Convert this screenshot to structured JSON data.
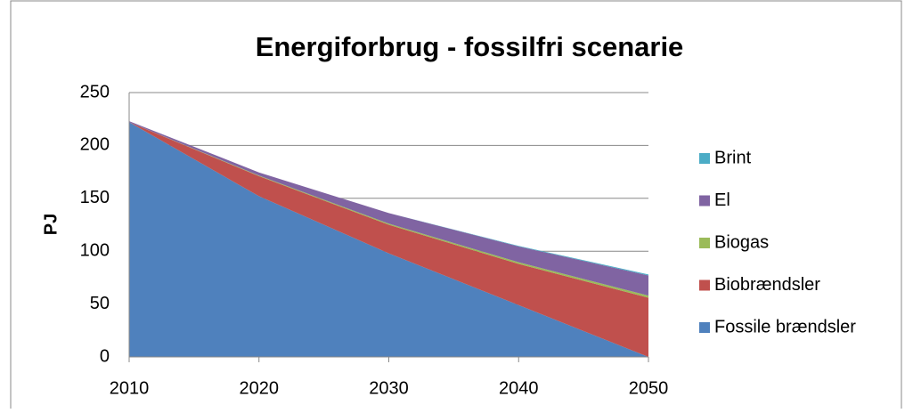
{
  "chart_data": {
    "type": "stacked_area",
    "title": "Energiforbrug - fossilfri scenarie",
    "y_label": "PJ",
    "x": [
      2010,
      2020,
      2030,
      2040,
      2050
    ],
    "series": [
      {
        "name": "Fossile brændsler",
        "color": "#4f81bd",
        "values": [
          222,
          152,
          98,
          49,
          0
        ]
      },
      {
        "name": "Biobrændsler",
        "color": "#c0504d",
        "values": [
          0,
          19,
          27,
          39,
          56
        ]
      },
      {
        "name": "Biogas",
        "color": "#9bbb59",
        "values": [
          0,
          0.5,
          1,
          1.5,
          2
        ]
      },
      {
        "name": "El",
        "color": "#8064a2",
        "values": [
          1,
          3,
          10,
          15,
          19
        ]
      },
      {
        "name": "Brint",
        "color": "#4bacc6",
        "values": [
          0,
          0,
          0,
          0.5,
          1
        ]
      }
    ],
    "xlim": [
      2010,
      2050
    ],
    "xticks": [
      2010,
      2020,
      2030,
      2040,
      2050
    ],
    "ylim": [
      0,
      250
    ],
    "yticks": [
      0,
      50,
      100,
      150,
      200,
      250
    ],
    "grid": true,
    "legend": "right"
  }
}
